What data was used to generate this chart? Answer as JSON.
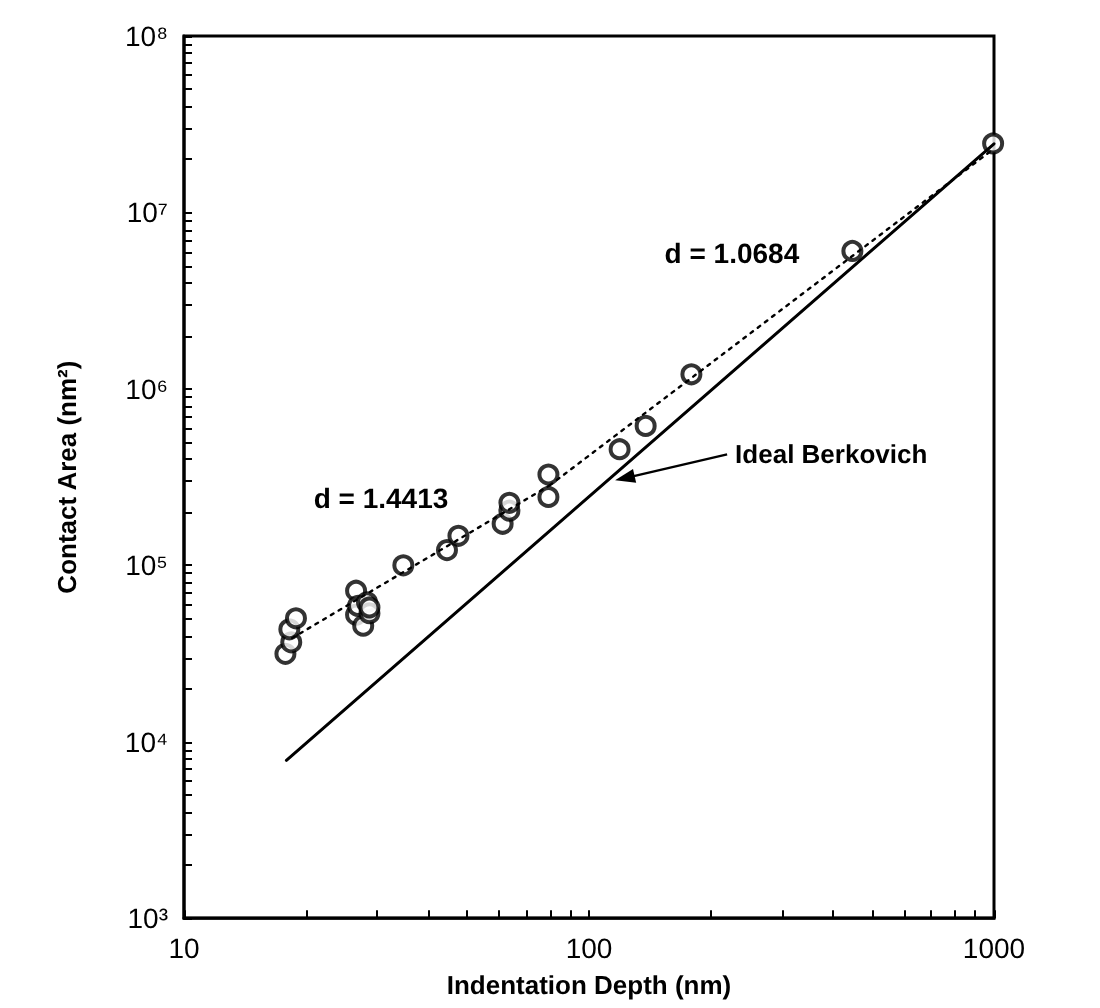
{
  "chart_data": {
    "type": "scatter",
    "xlabel": "Indentation Depth (nm)",
    "ylabel": "Contact Area (nm²)",
    "log": "xy",
    "grid": false,
    "xlim": [
      10,
      1000
    ],
    "ylim": [
      1000,
      100000000
    ],
    "xticks": [
      10,
      {
        "value": 20,
        "label": null
      },
      {
        "value": 30,
        "label": null
      },
      {
        "value": 40,
        "label": null
      },
      {
        "value": 50,
        "label": null
      },
      {
        "value": 60,
        "label": null
      },
      {
        "value": 70,
        "label": null
      },
      {
        "value": 80,
        "label": null
      },
      {
        "value": 90,
        "label": null
      },
      100,
      {
        "value": 200,
        "label": null
      },
      {
        "value": 300,
        "label": null
      },
      {
        "value": 400,
        "label": null
      },
      {
        "value": 500,
        "label": null
      },
      {
        "value": 600,
        "label": null
      },
      {
        "value": 700,
        "label": null
      },
      {
        "value": 800,
        "label": null
      },
      {
        "value": 900,
        "label": null
      },
      1000
    ],
    "yticks": [
      {
        "value": 1000,
        "label": "10³"
      },
      {
        "value": 2000,
        "label": null
      },
      {
        "value": 3000,
        "label": null
      },
      {
        "value": 4000,
        "label": null
      },
      {
        "value": 5000,
        "label": null
      },
      {
        "value": 6000,
        "label": null
      },
      {
        "value": 7000,
        "label": null
      },
      {
        "value": 8000,
        "label": null
      },
      {
        "value": 9000,
        "label": null
      },
      {
        "value": 10000,
        "label": "10⁴"
      },
      {
        "value": 20000,
        "label": null
      },
      {
        "value": 30000,
        "label": null
      },
      {
        "value": 40000,
        "label": null
      },
      {
        "value": 50000,
        "label": null
      },
      {
        "value": 60000,
        "label": null
      },
      {
        "value": 70000,
        "label": null
      },
      {
        "value": 80000,
        "label": null
      },
      {
        "value": 90000,
        "label": null
      },
      {
        "value": 100000,
        "label": "10⁵"
      },
      {
        "value": 200000,
        "label": null
      },
      {
        "value": 300000,
        "label": null
      },
      {
        "value": 400000,
        "label": null
      },
      {
        "value": 500000,
        "label": null
      },
      {
        "value": 600000,
        "label": null
      },
      {
        "value": 700000,
        "label": null
      },
      {
        "value": 800000,
        "label": null
      },
      {
        "value": 900000,
        "label": null
      },
      {
        "value": 1000000,
        "label": "10⁶"
      },
      {
        "value": 2000000,
        "label": null
      },
      {
        "value": 3000000,
        "label": null
      },
      {
        "value": 4000000,
        "label": null
      },
      {
        "value": 5000000,
        "label": null
      },
      {
        "value": 6000000,
        "label": null
      },
      {
        "value": 7000000,
        "label": null
      },
      {
        "value": 8000000,
        "label": null
      },
      {
        "value": 9000000,
        "label": null
      },
      {
        "value": 10000000,
        "label": "10⁷"
      },
      {
        "value": 20000000,
        "label": null
      },
      {
        "value": 30000000,
        "label": null
      },
      {
        "value": 40000000,
        "label": null
      },
      {
        "value": 50000000,
        "label": null
      },
      {
        "value": 60000000,
        "label": null
      },
      {
        "value": 70000000,
        "label": null
      },
      {
        "value": 80000000,
        "label": null
      },
      {
        "value": 90000000,
        "label": null
      },
      {
        "value": 100000000,
        "label": "10⁸"
      }
    ],
    "series": [
      {
        "color": "#000000",
        "marker": "circle",
        "x": [
          17.8,
          18.4,
          18.2,
          18.9,
          26.6,
          26.6,
          26.9,
          27.7,
          28.3,
          28.7,
          28.7,
          34.8,
          44.6,
          47.6,
          61.2,
          63.6,
          63.6,
          79.4,
          79.4,
          119,
          138,
          179,
          447,
          995
        ],
        "values": [
          31500,
          36600,
          43400,
          50100,
          71800,
          52500,
          58900,
          45500,
          61700,
          53500,
          57700,
          100000,
          122000,
          147000,
          172000,
          204000,
          226000,
          244000,
          327000,
          455000,
          617000,
          1210000,
          6050000,
          24600000
        ]
      },
      {
        "type": "line",
        "name": "d = 1.4413",
        "color": "#000000",
        "marker": "none",
        "line_style": "dotted",
        "x": [
          18.5,
          80
        ],
        "values": [
          38700,
          284000
        ]
      },
      {
        "type": "line",
        "name": "d = 1.0684",
        "color": "#000000",
        "marker": "none",
        "line_style": "dotted",
        "x": [
          80,
          1000
        ],
        "values": [
          284000,
          23000000
        ]
      },
      {
        "type": "line",
        "color": "#000000",
        "marker": "none",
        "line_style": "solid",
        "x": [
          17.9,
          1000
        ],
        "values": [
          7850,
          24500000
        ]
      }
    ],
    "annotations": [
      {
        "text": "Ideal Berkovich",
        "x": 116,
        "y": 303000
      }
    ]
  }
}
